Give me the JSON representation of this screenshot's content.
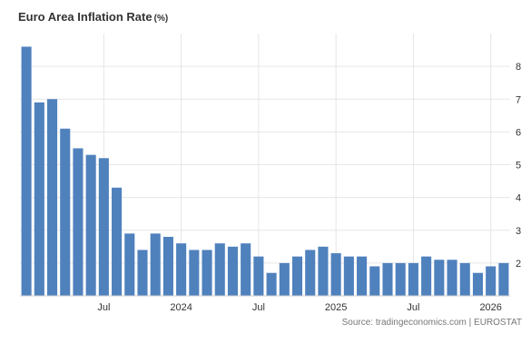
{
  "chart_data": {
    "type": "bar",
    "title": "Euro Area Inflation Rate",
    "unit": "(%)",
    "source": "Source: tradingeconomics.com | EUROSTAT",
    "x_tick_labels": [
      "Jul",
      "2024",
      "Jul",
      "2025",
      "Jul",
      "2026"
    ],
    "ylim": [
      1,
      9
    ],
    "y_ticks": [
      2,
      3,
      4,
      5,
      6,
      7,
      8
    ],
    "y_axis_position": "right",
    "grid": true,
    "color": "#4f81bd",
    "categories": [
      "2023-01",
      "2023-02",
      "2023-03",
      "2023-04",
      "2023-05",
      "2023-06",
      "2023-07",
      "2023-08",
      "2023-09",
      "2023-10",
      "2023-11",
      "2023-12",
      "2024-01",
      "2024-02",
      "2024-03",
      "2024-04",
      "2024-05",
      "2024-06",
      "2024-07",
      "2024-08",
      "2024-09",
      "2024-10",
      "2024-11",
      "2024-12",
      "2025-01",
      "2025-02",
      "2025-03",
      "2025-04",
      "2025-05",
      "2025-06",
      "2025-07",
      "2025-08",
      "2025-09",
      "2025-10",
      "2025-11",
      "2025-12",
      "2026-01",
      "2026-02"
    ],
    "values": [
      8.6,
      6.9,
      7.0,
      6.1,
      5.5,
      5.3,
      5.2,
      4.3,
      2.9,
      2.4,
      2.9,
      2.8,
      2.6,
      2.4,
      2.4,
      2.6,
      2.5,
      2.6,
      2.2,
      1.7,
      2.0,
      2.2,
      2.4,
      2.5,
      2.3,
      2.2,
      2.2,
      1.9,
      2.0,
      2.0,
      2.0,
      2.2,
      2.1,
      2.1,
      2.0,
      1.7,
      1.9,
      2.0
    ]
  }
}
